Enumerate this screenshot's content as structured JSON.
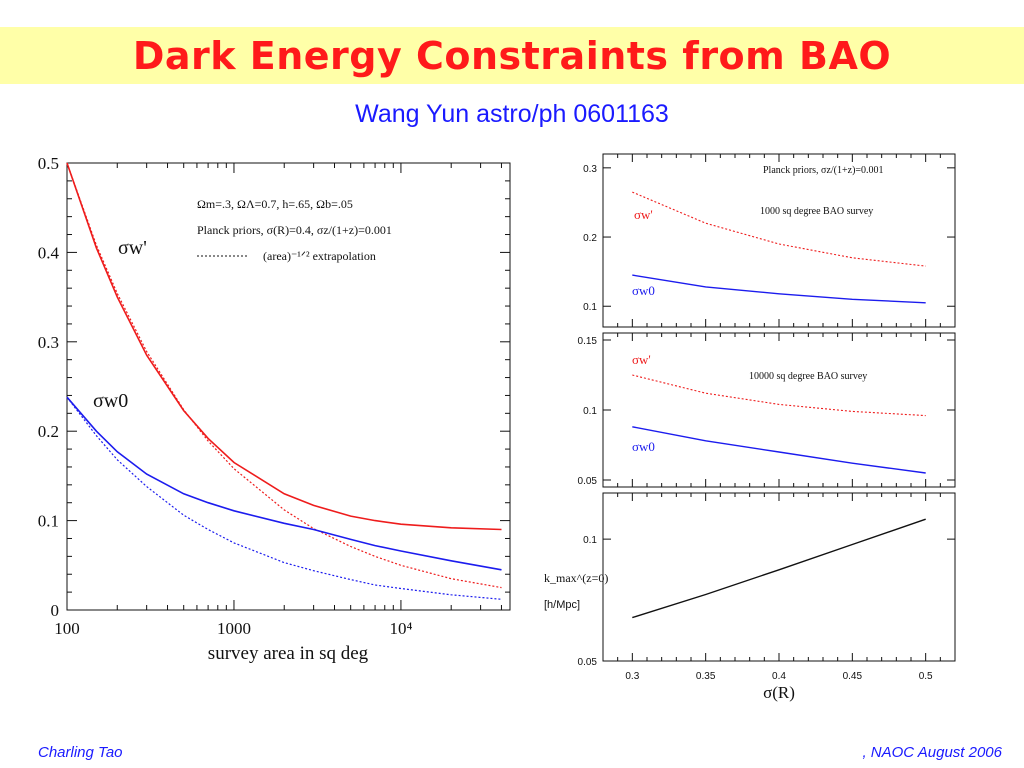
{
  "slide": {
    "title": "Dark Energy Constraints from BAO",
    "subtitle": "Wang Yun astro/ph 0601163",
    "footer_left": "Charling Tao",
    "footer_right": ",   NAOC August 2006"
  },
  "colors": {
    "title": "#ff1a1a",
    "title_bg": "#ffffa8",
    "subtitle": "#1a1aff",
    "red": "#ee1c1c",
    "blue": "#1c1cee",
    "black": "#111111"
  },
  "chart_data": [
    {
      "type": "line",
      "xlabel": "survey area in sq deg",
      "ylabel": "",
      "x_scale": "log",
      "xlim": [
        100,
        45000
      ],
      "ylim": [
        0,
        0.5
      ],
      "x_ticks": [
        100,
        1000,
        10000
      ],
      "x_tick_labels": [
        "100",
        "1000",
        "10⁴"
      ],
      "y_ticks": [
        0,
        0.1,
        0.2,
        0.3,
        0.4,
        0.5
      ],
      "y_tick_labels": [
        "0",
        "0.1",
        "0.2",
        "0.3",
        "0.4",
        "0.5"
      ],
      "annotations": [
        "Ωm=.3,  ΩΛ=0.7,  h=.65,  Ωb=.05",
        "Planck priors,  σ(R)=0.4,  σz/(1+z)=0.001",
        "(area)⁻¹ᐟ² extrapolation"
      ],
      "series_labels": {
        "w_prime": "σw'",
        "w0": "σw0"
      },
      "series": [
        {
          "x": [
            100,
            150,
            200,
            300,
            500,
            700,
            1000,
            2000,
            3000,
            5000,
            7000,
            10000,
            20000,
            40000
          ],
          "values": [
            0.5,
            0.405,
            0.35,
            0.285,
            0.223,
            0.192,
            0.165,
            0.13,
            0.117,
            0.105,
            0.1,
            0.096,
            0.092,
            0.09
          ],
          "style": "solid",
          "color": "red"
        },
        {
          "x": [
            100,
            150,
            200,
            300,
            500,
            700,
            1000,
            2000,
            3000,
            5000,
            7000,
            10000,
            20000,
            40000
          ],
          "values": [
            0.5,
            0.408,
            0.354,
            0.289,
            0.224,
            0.189,
            0.158,
            0.112,
            0.091,
            0.071,
            0.06,
            0.05,
            0.035,
            0.025
          ],
          "style": "dashed",
          "color": "red"
        },
        {
          "x": [
            100,
            150,
            200,
            300,
            500,
            700,
            1000,
            2000,
            3000,
            5000,
            7000,
            10000,
            20000,
            40000
          ],
          "values": [
            0.238,
            0.2,
            0.177,
            0.152,
            0.13,
            0.12,
            0.111,
            0.097,
            0.09,
            0.079,
            0.072,
            0.066,
            0.055,
            0.045
          ],
          "style": "solid",
          "color": "blue"
        },
        {
          "x": [
            100,
            150,
            200,
            300,
            500,
            700,
            1000,
            2000,
            3000,
            5000,
            7000,
            10000,
            20000,
            40000
          ],
          "values": [
            0.238,
            0.195,
            0.168,
            0.138,
            0.106,
            0.09,
            0.075,
            0.053,
            0.044,
            0.034,
            0.028,
            0.024,
            0.017,
            0.012
          ],
          "style": "dashed",
          "color": "blue"
        }
      ]
    },
    {
      "type": "line",
      "xlabel": "σ(R)",
      "xlim": [
        0.28,
        0.52
      ],
      "x_ticks": [
        0.3,
        0.35,
        0.4,
        0.45,
        0.5
      ],
      "x_tick_labels": [
        "0.3",
        "0.35",
        "0.4",
        "0.45",
        "0.5"
      ],
      "panels": [
        {
          "ylim": [
            0.07,
            0.32
          ],
          "y_ticks": [
            0.1,
            0.2,
            0.3
          ],
          "y_tick_labels": [
            "0.1",
            "0.2",
            "0.3"
          ],
          "annotations": [
            "Planck priors,  σz/(1+z)=0.001",
            "1000 sq degree BAO survey"
          ],
          "series_labels": {
            "w_prime": "σw'",
            "w0": "σw0"
          },
          "series": [
            {
              "x": [
                0.3,
                0.35,
                0.4,
                0.45,
                0.5
              ],
              "values": [
                0.265,
                0.22,
                0.19,
                0.17,
                0.158
              ],
              "style": "dashed",
              "color": "red"
            },
            {
              "x": [
                0.3,
                0.35,
                0.4,
                0.45,
                0.5
              ],
              "values": [
                0.145,
                0.128,
                0.118,
                0.11,
                0.105
              ],
              "style": "solid",
              "color": "blue"
            }
          ]
        },
        {
          "ylim": [
            0.045,
            0.155
          ],
          "y_ticks": [
            0.05,
            0.1,
            0.15
          ],
          "y_tick_labels": [
            "0.05",
            "0.1",
            "0.15"
          ],
          "annotations": [
            "10000 sq degree BAO survey"
          ],
          "series_labels": {
            "w_prime": "σw'",
            "w0": "σw0"
          },
          "series": [
            {
              "x": [
                0.3,
                0.35,
                0.4,
                0.45,
                0.5
              ],
              "values": [
                0.125,
                0.112,
                0.104,
                0.099,
                0.096
              ],
              "style": "dashed",
              "color": "red"
            },
            {
              "x": [
                0.3,
                0.35,
                0.4,
                0.45,
                0.5
              ],
              "values": [
                0.088,
                0.078,
                0.07,
                0.062,
                0.055
              ],
              "style": "solid",
              "color": "blue"
            }
          ]
        },
        {
          "y_scale": "log",
          "ylim": [
            0.05,
            0.13
          ],
          "y_ticks": [
            0.05,
            0.1
          ],
          "y_tick_labels": [
            "0.05",
            "0.1"
          ],
          "ylabel": "k_max^(z=0)",
          "ylabel_unit": "[h/Mpc]",
          "series": [
            {
              "x": [
                0.3,
                0.35,
                0.4,
                0.45,
                0.5
              ],
              "values": [
                0.064,
                0.073,
                0.084,
                0.097,
                0.112
              ],
              "style": "solid",
              "color": "black"
            }
          ]
        }
      ]
    }
  ]
}
